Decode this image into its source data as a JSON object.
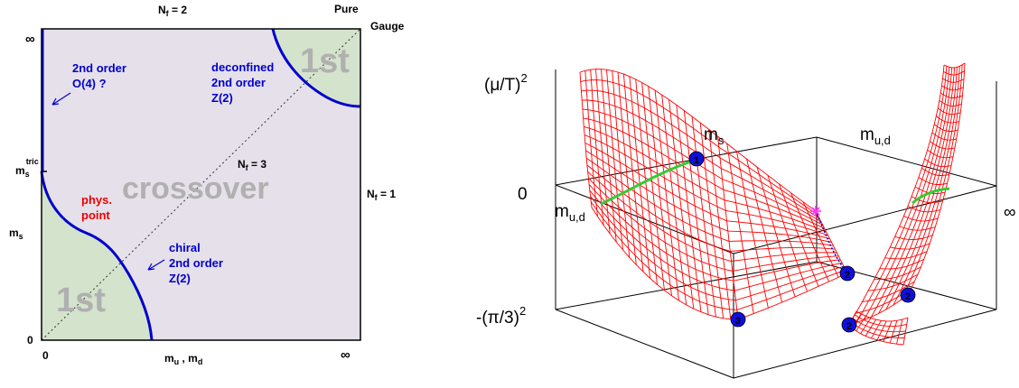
{
  "left_panel": {
    "top_label_nf2": "N",
    "top_label_nf2_sub": "f",
    "top_label_nf2_val": " = 2",
    "pure_gauge_line1": "Pure",
    "pure_gauge_line2": "Gauge",
    "y_infinity": "∞",
    "x_infinity": "∞",
    "origin_y": "0",
    "origin_x": "0",
    "ms_tric_main": "m",
    "ms_tric_sub": "s",
    "ms_tric_sup": "tric",
    "ms_main": "m",
    "ms_sub": "s",
    "x_axis_m": "m",
    "x_axis_u": "u",
    "x_axis_comma": " , m",
    "x_axis_d": "d",
    "nf1_main": "N",
    "nf1_sub": "f",
    "nf1_val": " = 1",
    "nf3_main": "N",
    "nf3_sub": "f",
    "nf3_val": " = 3",
    "first_order_bottom": "1st",
    "first_order_top": "1st",
    "crossover": "crossover",
    "phys_point_line1": "phys.",
    "phys_point_line2": "point",
    "second_order_o4_line1": "2nd order",
    "second_order_o4_line2": "O(4) ?",
    "deconfined_line1": "deconfined",
    "deconfined_line2": "2nd order",
    "deconfined_line3": "Z(2)",
    "chiral_line1": "chiral",
    "chiral_line2": "2nd order",
    "chiral_line3": "Z(2)",
    "colors": {
      "region_fill": "#e6e0ea",
      "first_order_fill": "#d4e3cc",
      "boundary_line": "#0000cc",
      "label_blue": "#0000cc",
      "label_red": "#ee0000",
      "watermark_gray": "#b0b0b0"
    }
  },
  "right_panel": {
    "y_label_main": "(μ/T)",
    "y_label_sup": "2",
    "zero_label": "0",
    "neg_label_main": "-(π/3)",
    "neg_label_sup": "2",
    "ms_main": "m",
    "ms_sub": "s",
    "mud_top_main": "m",
    "mud_top_sub": "u,d",
    "mud_left_main": "m",
    "mud_left_sub": "u,d",
    "right_infinity": "∞",
    "markers": [
      "1",
      "2",
      "2",
      "2",
      "3",
      "3"
    ],
    "colors": {
      "surface_mesh": "#ff0000",
      "green_line": "#33cc33",
      "marker_fill": "#1010dd",
      "pink_star": "#ff33ff",
      "axes": "#000000"
    }
  }
}
